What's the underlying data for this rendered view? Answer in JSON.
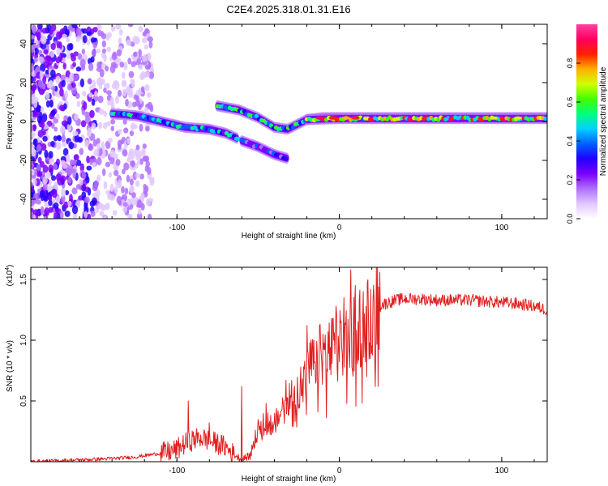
{
  "figure": {
    "title": "C2E4.2025.318.01.31.E16"
  },
  "chart_data": [
    {
      "type": "heatmap",
      "name": "spectrogram",
      "xlabel": "Height of straight line (km)",
      "ylabel": "Frequency (Hz)",
      "xlim": [
        -190,
        128
      ],
      "ylim": [
        -50,
        50
      ],
      "xticks": [
        -100,
        0,
        100
      ],
      "xtick_labels": [
        "-100",
        "0",
        "100"
      ],
      "yticks": [
        -40,
        -20,
        0,
        20,
        40
      ],
      "ytick_labels": [
        "-40",
        "-20",
        "0",
        "20",
        "40"
      ],
      "colorbar": {
        "label": "Normalized spectral amplitude",
        "range": [
          0,
          1
        ],
        "ticks": [
          0.0,
          0.2,
          0.4,
          0.6,
          0.8
        ],
        "tick_labels": [
          "0.0",
          "0.2",
          "0.4",
          "0.6",
          "0.8"
        ],
        "colors": [
          "#ffffff",
          "#e0c8ff",
          "#b070ff",
          "#7b00ff",
          "#2000ff",
          "#0060ff",
          "#00d0ff",
          "#00ff80",
          "#40ff00",
          "#d0ff00",
          "#ffb000",
          "#ff2000",
          "#ff0060",
          "#ff40a0"
        ]
      },
      "features": [
        {
          "name": "main-ridge",
          "points": [
            [
              -140,
              4
            ],
            [
              -125,
              3
            ],
            [
              -110,
              0
            ],
            [
              -95,
              -3
            ],
            [
              -80,
              -4
            ],
            [
              -70,
              -6
            ],
            [
              -62,
              -9
            ]
          ],
          "amplitude": 0.45
        },
        {
          "name": "upper-ridge",
          "points": [
            [
              -75,
              8
            ],
            [
              -62,
              6
            ],
            [
              -50,
              2
            ],
            [
              -40,
              -3
            ],
            [
              -32,
              -4
            ],
            [
              -20,
              1
            ],
            [
              -10,
              2
            ],
            [
              0,
              2
            ],
            [
              15,
              2
            ],
            [
              30,
              2
            ],
            [
              60,
              2
            ],
            [
              90,
              2
            ],
            [
              128,
              2
            ]
          ],
          "amplitude": 0.5
        },
        {
          "name": "lower-branch",
          "points": [
            [
              -60,
              -10
            ],
            [
              -50,
              -13
            ],
            [
              -40,
              -17
            ],
            [
              -32,
              -19
            ]
          ],
          "amplitude": 0.3
        },
        {
          "name": "dc-line",
          "points": [
            [
              -20,
              1
            ],
            [
              0,
              1.5
            ],
            [
              20,
              1.5
            ],
            [
              60,
              1.5
            ],
            [
              100,
              1.5
            ],
            [
              128,
              1.5
            ]
          ],
          "amplitude": 0.75
        }
      ]
    },
    {
      "type": "line",
      "name": "snr",
      "xlabel": "Height of straight line (km)",
      "ylabel": "SNR (10 * v/v)",
      "ylabel_scale": "(x10",
      "ylabel_scale_exp": "4",
      "ylabel_scale_close": ")",
      "xlim": [
        -190,
        128
      ],
      "ylim": [
        0,
        1.6
      ],
      "xticks": [
        -100,
        0,
        100
      ],
      "xtick_labels": [
        "-100",
        "0",
        "100"
      ],
      "yticks": [
        0.5,
        1.0,
        1.5
      ],
      "ytick_labels": [
        "0.5",
        "1.0",
        "1.5"
      ],
      "color": "#e02020",
      "series": [
        {
          "name": "SNR",
          "x": [
            -190,
            -170,
            -150,
            -135,
            -125,
            -115,
            -105,
            -100,
            -95,
            -90,
            -85,
            -80,
            -75,
            -70,
            -65,
            -60,
            -55,
            -52,
            -50,
            -47,
            -44,
            -41,
            -38,
            -35,
            -32,
            -29,
            -26,
            -23,
            -20,
            -17,
            -14,
            -11,
            -8,
            -5,
            -2,
            0,
            3,
            6,
            9,
            12,
            15,
            18,
            22,
            26,
            30,
            35,
            40,
            50,
            60,
            70,
            80,
            90,
            100,
            110,
            120,
            128
          ],
          "y": [
            0.0,
            0.01,
            0.02,
            0.03,
            0.04,
            0.06,
            0.08,
            0.1,
            0.15,
            0.18,
            0.2,
            0.17,
            0.15,
            0.12,
            0.06,
            0.02,
            0.05,
            0.2,
            0.3,
            0.35,
            0.33,
            0.3,
            0.35,
            0.45,
            0.5,
            0.55,
            0.6,
            0.62,
            0.7,
            0.8,
            0.85,
            0.88,
            0.9,
            0.92,
            0.95,
            0.95,
            0.97,
            1.0,
            1.05,
            1.1,
            1.15,
            1.2,
            1.25,
            1.29,
            1.31,
            1.33,
            1.34,
            1.34,
            1.33,
            1.33,
            1.33,
            1.32,
            1.31,
            1.3,
            1.28,
            1.25
          ],
          "spikes": [
            [
              -80,
              0.32
            ],
            [
              -93,
              0.5
            ],
            [
              -60,
              0.62
            ],
            [
              -45,
              0.48
            ],
            [
              -33,
              0.67
            ],
            [
              -20,
              1.12
            ],
            [
              -14,
              0.99
            ],
            [
              -10,
              1.05
            ],
            [
              -2,
              1.28
            ],
            [
              3,
              1.35
            ],
            [
              7,
              1.58
            ],
            [
              10,
              1.45
            ],
            [
              18,
              1.2
            ]
          ]
        }
      ]
    }
  ]
}
